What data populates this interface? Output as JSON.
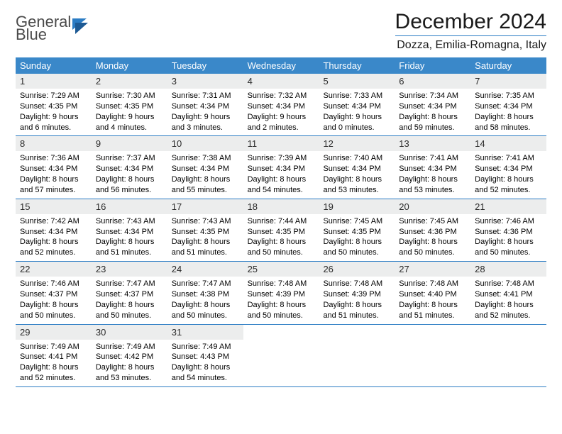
{
  "logo": {
    "line1": "General",
    "line2": "Blue"
  },
  "title": "December 2024",
  "location": "Dozza, Emilia-Romagna, Italy",
  "colors": {
    "header_bg": "#3a88c9",
    "header_text": "#ffffff",
    "accent": "#2b7cc4",
    "daynum_bg": "#eceded",
    "text": "#000000",
    "page_bg": "#ffffff"
  },
  "typography": {
    "title_fontsize": 30,
    "location_fontsize": 16,
    "dayheader_fontsize": 13,
    "daynum_fontsize": 13,
    "dayinfo_fontsize": 11,
    "font_family": "Arial"
  },
  "layout": {
    "columns": 7,
    "rows": 5
  },
  "day_labels": [
    "Sunday",
    "Monday",
    "Tuesday",
    "Wednesday",
    "Thursday",
    "Friday",
    "Saturday"
  ],
  "days": [
    {
      "n": 1,
      "sunrise": "7:29 AM",
      "sunset": "4:35 PM",
      "daylight": "9 hours and 6 minutes."
    },
    {
      "n": 2,
      "sunrise": "7:30 AM",
      "sunset": "4:35 PM",
      "daylight": "9 hours and 4 minutes."
    },
    {
      "n": 3,
      "sunrise": "7:31 AM",
      "sunset": "4:34 PM",
      "daylight": "9 hours and 3 minutes."
    },
    {
      "n": 4,
      "sunrise": "7:32 AM",
      "sunset": "4:34 PM",
      "daylight": "9 hours and 2 minutes."
    },
    {
      "n": 5,
      "sunrise": "7:33 AM",
      "sunset": "4:34 PM",
      "daylight": "9 hours and 0 minutes."
    },
    {
      "n": 6,
      "sunrise": "7:34 AM",
      "sunset": "4:34 PM",
      "daylight": "8 hours and 59 minutes."
    },
    {
      "n": 7,
      "sunrise": "7:35 AM",
      "sunset": "4:34 PM",
      "daylight": "8 hours and 58 minutes."
    },
    {
      "n": 8,
      "sunrise": "7:36 AM",
      "sunset": "4:34 PM",
      "daylight": "8 hours and 57 minutes."
    },
    {
      "n": 9,
      "sunrise": "7:37 AM",
      "sunset": "4:34 PM",
      "daylight": "8 hours and 56 minutes."
    },
    {
      "n": 10,
      "sunrise": "7:38 AM",
      "sunset": "4:34 PM",
      "daylight": "8 hours and 55 minutes."
    },
    {
      "n": 11,
      "sunrise": "7:39 AM",
      "sunset": "4:34 PM",
      "daylight": "8 hours and 54 minutes."
    },
    {
      "n": 12,
      "sunrise": "7:40 AM",
      "sunset": "4:34 PM",
      "daylight": "8 hours and 53 minutes."
    },
    {
      "n": 13,
      "sunrise": "7:41 AM",
      "sunset": "4:34 PM",
      "daylight": "8 hours and 53 minutes."
    },
    {
      "n": 14,
      "sunrise": "7:41 AM",
      "sunset": "4:34 PM",
      "daylight": "8 hours and 52 minutes."
    },
    {
      "n": 15,
      "sunrise": "7:42 AM",
      "sunset": "4:34 PM",
      "daylight": "8 hours and 52 minutes."
    },
    {
      "n": 16,
      "sunrise": "7:43 AM",
      "sunset": "4:34 PM",
      "daylight": "8 hours and 51 minutes."
    },
    {
      "n": 17,
      "sunrise": "7:43 AM",
      "sunset": "4:35 PM",
      "daylight": "8 hours and 51 minutes."
    },
    {
      "n": 18,
      "sunrise": "7:44 AM",
      "sunset": "4:35 PM",
      "daylight": "8 hours and 50 minutes."
    },
    {
      "n": 19,
      "sunrise": "7:45 AM",
      "sunset": "4:35 PM",
      "daylight": "8 hours and 50 minutes."
    },
    {
      "n": 20,
      "sunrise": "7:45 AM",
      "sunset": "4:36 PM",
      "daylight": "8 hours and 50 minutes."
    },
    {
      "n": 21,
      "sunrise": "7:46 AM",
      "sunset": "4:36 PM",
      "daylight": "8 hours and 50 minutes."
    },
    {
      "n": 22,
      "sunrise": "7:46 AM",
      "sunset": "4:37 PM",
      "daylight": "8 hours and 50 minutes."
    },
    {
      "n": 23,
      "sunrise": "7:47 AM",
      "sunset": "4:37 PM",
      "daylight": "8 hours and 50 minutes."
    },
    {
      "n": 24,
      "sunrise": "7:47 AM",
      "sunset": "4:38 PM",
      "daylight": "8 hours and 50 minutes."
    },
    {
      "n": 25,
      "sunrise": "7:48 AM",
      "sunset": "4:39 PM",
      "daylight": "8 hours and 50 minutes."
    },
    {
      "n": 26,
      "sunrise": "7:48 AM",
      "sunset": "4:39 PM",
      "daylight": "8 hours and 51 minutes."
    },
    {
      "n": 27,
      "sunrise": "7:48 AM",
      "sunset": "4:40 PM",
      "daylight": "8 hours and 51 minutes."
    },
    {
      "n": 28,
      "sunrise": "7:48 AM",
      "sunset": "4:41 PM",
      "daylight": "8 hours and 52 minutes."
    },
    {
      "n": 29,
      "sunrise": "7:49 AM",
      "sunset": "4:41 PM",
      "daylight": "8 hours and 52 minutes."
    },
    {
      "n": 30,
      "sunrise": "7:49 AM",
      "sunset": "4:42 PM",
      "daylight": "8 hours and 53 minutes."
    },
    {
      "n": 31,
      "sunrise": "7:49 AM",
      "sunset": "4:43 PM",
      "daylight": "8 hours and 54 minutes."
    }
  ],
  "labels": {
    "sunrise": "Sunrise:",
    "sunset": "Sunset:",
    "daylight": "Daylight:"
  }
}
